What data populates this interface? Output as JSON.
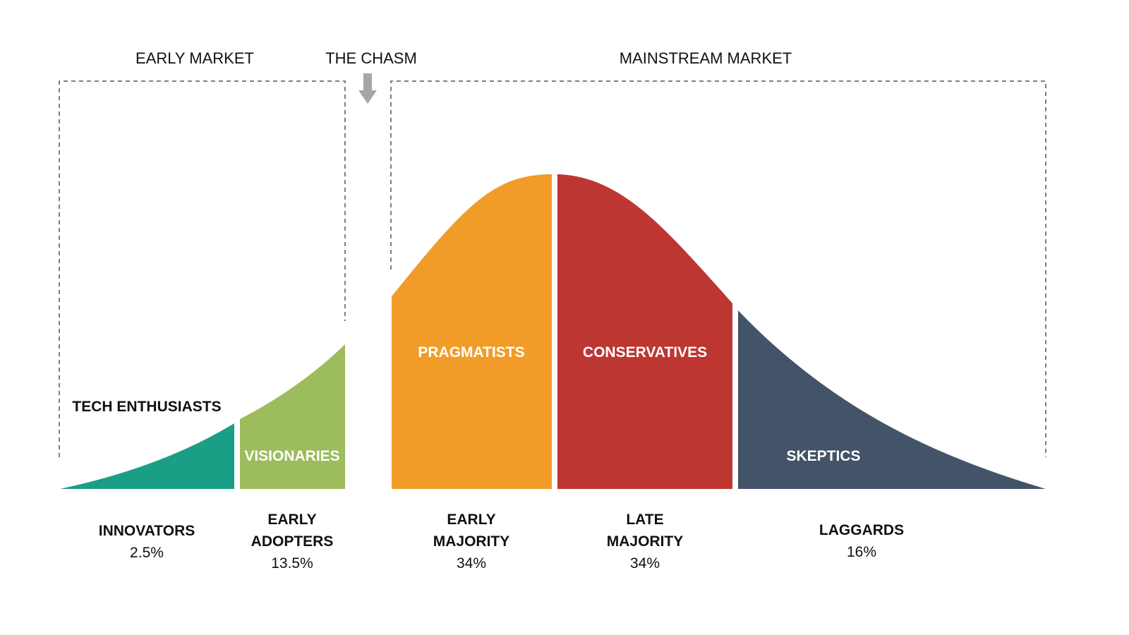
{
  "headers": {
    "early_market": "EARLY MARKET",
    "chasm": "THE CHASM",
    "mainstream_market": "MAINSTREAM MARKET"
  },
  "segments": [
    {
      "name": "TECH ENTHUSIASTS",
      "group": "INNOVATORS",
      "share": "2.5%",
      "color": "#1a9e85"
    },
    {
      "name": "VISIONARIES",
      "group_line1": "EARLY",
      "group_line2": "ADOPTERS",
      "share": "13.5%",
      "color": "#9dbc5e"
    },
    {
      "name": "PRAGMATISTS",
      "group_line1": "EARLY",
      "group_line2": "MAJORITY",
      "share": "34%",
      "color": "#f19c28"
    },
    {
      "name": "CONSERVATIVES",
      "group_line1": "LATE",
      "group_line2": "MAJORITY",
      "share": "34%",
      "color": "#be3631"
    },
    {
      "name": "SKEPTICS",
      "group": "LAGGARDS",
      "share": "16%",
      "color": "#435368"
    }
  ],
  "icons": {
    "chasm_arrow": "arrow-down-icon"
  }
}
